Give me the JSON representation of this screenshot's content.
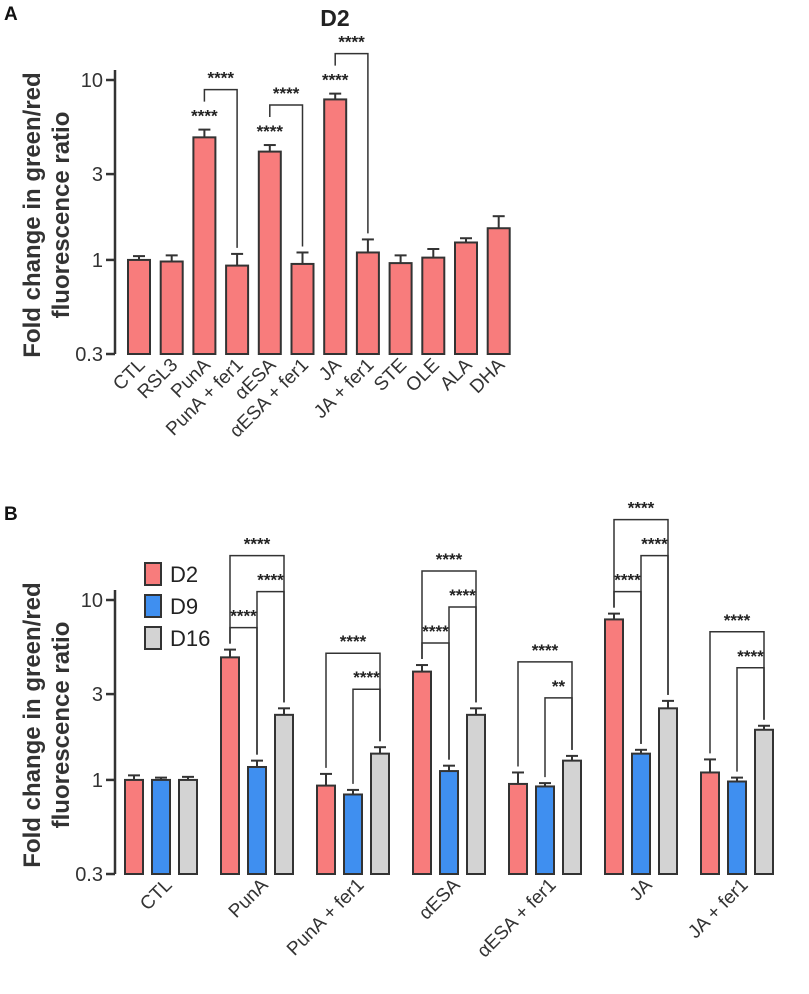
{
  "panels": {
    "a": {
      "letter": "A",
      "title": "D2"
    },
    "b": {
      "letter": "B"
    }
  },
  "colors": {
    "D2": "#f87c7c",
    "D9": "#3f8ff0",
    "D16": "#d3d3d3",
    "axis": "#333333"
  },
  "chart_data": [
    {
      "type": "bar",
      "title": "D2",
      "ylabel_lines": [
        "Fold change in green/red",
        "fluorescence ratio"
      ],
      "yscale": "log",
      "ylim": [
        0.3,
        12
      ],
      "yticks": [
        0.3,
        1,
        3,
        10
      ],
      "ytick_labels": [
        "0.3",
        "1",
        "3",
        "10"
      ],
      "categories": [
        "CTL",
        "RSL3",
        "PunA",
        "PunA + fer1",
        "αESA",
        "αESA + fer1",
        "JA",
        "JA + fer1",
        "STE",
        "OLE",
        "ALA",
        "DHA"
      ],
      "series": [
        {
          "name": "D2",
          "values": [
            1.0,
            0.98,
            4.8,
            0.93,
            4.0,
            0.95,
            7.8,
            1.1,
            0.96,
            1.03,
            1.25,
            1.5
          ],
          "errors": [
            0.05,
            0.08,
            0.5,
            0.15,
            0.35,
            0.15,
            0.6,
            0.2,
            0.1,
            0.12,
            0.07,
            0.25
          ]
        }
      ],
      "annotations": [
        {
          "type": "single",
          "category": "PunA",
          "label": "****"
        },
        {
          "type": "bracket",
          "from": "PunA",
          "to": "PunA + fer1",
          "label": "****"
        },
        {
          "type": "single",
          "category": "αESA",
          "label": "****"
        },
        {
          "type": "bracket",
          "from": "αESA",
          "to": "αESA + fer1",
          "label": "****"
        },
        {
          "type": "single",
          "category": "JA",
          "label": "****"
        },
        {
          "type": "bracket",
          "from": "JA",
          "to": "JA + fer1",
          "label": "****"
        }
      ]
    },
    {
      "type": "bar",
      "ylabel_lines": [
        "Fold change in green/red",
        "fluorescence ratio"
      ],
      "yscale": "log",
      "ylim": [
        0.3,
        12
      ],
      "yticks": [
        0.3,
        1,
        3,
        10
      ],
      "ytick_labels": [
        "0.3",
        "1",
        "3",
        "10"
      ],
      "categories": [
        "CTL",
        "PunA",
        "PunA + fer1",
        "αESA",
        "αESA + fer1",
        "JA",
        "JA + fer1"
      ],
      "legend": {
        "position": "top-left",
        "entries": [
          "D2",
          "D9",
          "D16"
        ]
      },
      "series": [
        {
          "name": "D2",
          "values": [
            1.0,
            4.8,
            0.93,
            4.0,
            0.95,
            7.8,
            1.1
          ],
          "errors": [
            0.06,
            0.5,
            0.15,
            0.35,
            0.15,
            0.6,
            0.2
          ]
        },
        {
          "name": "D9",
          "values": [
            1.0,
            1.18,
            0.83,
            1.12,
            0.92,
            1.4,
            0.98
          ],
          "errors": [
            0.03,
            0.1,
            0.05,
            0.08,
            0.04,
            0.07,
            0.05
          ]
        },
        {
          "name": "D16",
          "values": [
            1.0,
            2.3,
            1.4,
            2.3,
            1.28,
            2.5,
            1.9
          ],
          "errors": [
            0.04,
            0.2,
            0.12,
            0.2,
            0.08,
            0.25,
            0.1
          ]
        }
      ],
      "annotations": [
        {
          "category": "PunA",
          "from": "D2",
          "to": "D9",
          "label": "****"
        },
        {
          "category": "PunA",
          "from": "D9",
          "to": "D16",
          "label": "****"
        },
        {
          "category": "PunA",
          "from": "D2",
          "to": "D16",
          "label": "****"
        },
        {
          "category": "PunA + fer1",
          "from": "D9",
          "to": "D16",
          "label": "****"
        },
        {
          "category": "PunA + fer1",
          "from": "D2",
          "to": "D16",
          "label": "****"
        },
        {
          "category": "αESA",
          "from": "D2",
          "to": "D9",
          "label": "****"
        },
        {
          "category": "αESA",
          "from": "D9",
          "to": "D16",
          "label": "****"
        },
        {
          "category": "αESA",
          "from": "D2",
          "to": "D16",
          "label": "****"
        },
        {
          "category": "αESA + fer1",
          "from": "D9",
          "to": "D16",
          "label": "**"
        },
        {
          "category": "αESA + fer1",
          "from": "D2",
          "to": "D16",
          "label": "****"
        },
        {
          "category": "JA",
          "from": "D2",
          "to": "D9",
          "label": "****"
        },
        {
          "category": "JA",
          "from": "D9",
          "to": "D16",
          "label": "****"
        },
        {
          "category": "JA",
          "from": "D2",
          "to": "D16",
          "label": "****"
        },
        {
          "category": "JA + fer1",
          "from": "D9",
          "to": "D16",
          "label": "****"
        },
        {
          "category": "JA + fer1",
          "from": "D2",
          "to": "D16",
          "label": "****"
        }
      ]
    }
  ]
}
